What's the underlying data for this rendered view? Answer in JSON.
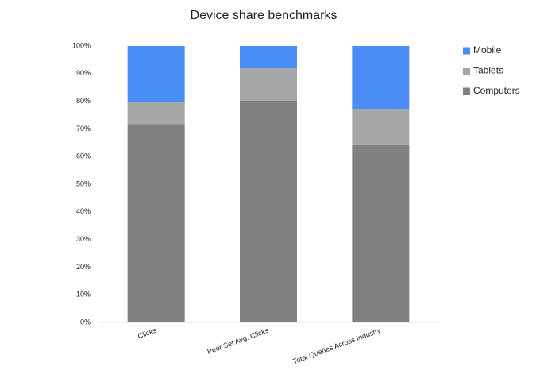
{
  "chart_data": {
    "type": "stacked_bar",
    "title": "Device share benchmarks",
    "categories": [
      "Clicks",
      "Peer Set Avg. Clicks",
      "Total Queries Across Industry"
    ],
    "series": [
      {
        "name": "Computers",
        "color": "#808080",
        "values": [
          71.8,
          80.2,
          64.4
        ]
      },
      {
        "name": "Tablets",
        "color": "#a6a6a6",
        "values": [
          7.8,
          11.8,
          12.9
        ]
      },
      {
        "name": "Mobile",
        "color": "#4a8ef5",
        "values": [
          20.4,
          8.0,
          22.7
        ]
      }
    ],
    "ylim": [
      0,
      100
    ],
    "yticks": [
      {
        "value": 0,
        "label": "0%"
      },
      {
        "value": 10,
        "label": "10%"
      },
      {
        "value": 20,
        "label": "20%"
      },
      {
        "value": 30,
        "label": "30%"
      },
      {
        "value": 40,
        "label": "40%"
      },
      {
        "value": 50,
        "label": "50%"
      },
      {
        "value": 60,
        "label": "60%"
      },
      {
        "value": 70,
        "label": "70%"
      },
      {
        "value": 80,
        "label": "80%"
      },
      {
        "value": 90,
        "label": "90%"
      },
      {
        "value": 100,
        "label": "100%"
      }
    ],
    "legend": "right"
  }
}
